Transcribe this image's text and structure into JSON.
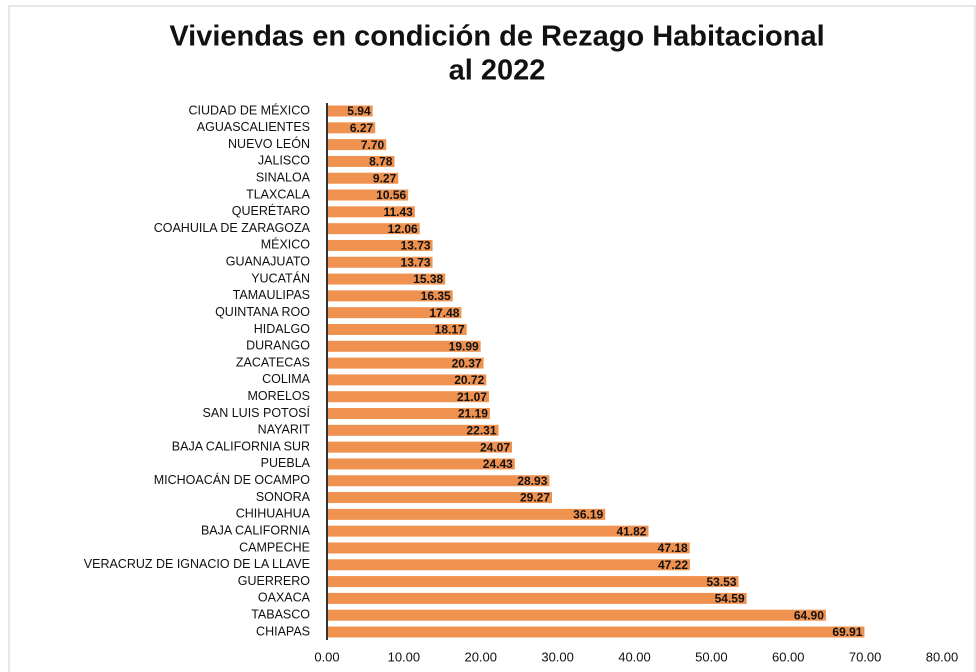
{
  "chart_data": {
    "type": "hbar",
    "title": [
      "Viviendas en condición de Rezago Habitacional",
      "al 2022"
    ],
    "categories": [
      "CIUDAD DE MÉXICO",
      "AGUASCALIENTES",
      "NUEVO LEÓN",
      "JALISCO",
      "SINALOA",
      "TLAXCALA",
      "QUERÉTARO",
      "COAHUILA DE ZARAGOZA",
      "MÉXICO",
      "GUANAJUATO",
      "YUCATÁN",
      "TAMAULIPAS",
      "QUINTANA ROO",
      "HIDALGO",
      "DURANGO",
      "ZACATECAS",
      "COLIMA",
      "MORELOS",
      "SAN LUIS POTOSÍ",
      "NAYARIT",
      "BAJA CALIFORNIA SUR",
      "PUEBLA",
      "MICHOACÁN DE OCAMPO",
      "SONORA",
      "CHIHUAHUA",
      "BAJA CALIFORNIA",
      "CAMPECHE",
      "VERACRUZ DE IGNACIO DE LA LLAVE",
      "GUERRERO",
      "OAXACA",
      "TABASCO",
      "CHIAPAS"
    ],
    "values": [
      5.94,
      6.27,
      7.7,
      8.78,
      9.27,
      10.56,
      11.43,
      12.06,
      13.73,
      13.73,
      15.38,
      16.35,
      17.48,
      18.17,
      19.99,
      20.37,
      20.72,
      21.07,
      21.19,
      22.31,
      24.07,
      24.43,
      28.93,
      29.27,
      36.19,
      41.82,
      47.18,
      47.22,
      53.53,
      54.59,
      64.9,
      69.91
    ],
    "value_labels": [
      "5.94",
      "6.27",
      "7.70",
      "8.78",
      "9.27",
      "10.56",
      "11.43",
      "12.06",
      "13.73",
      "13.73",
      "15.38",
      "16.35",
      "17.48",
      "18.17",
      "19.99",
      "20.37",
      "20.72",
      "21.07",
      "21.19",
      "22.31",
      "24.07",
      "24.43",
      "28.93",
      "29.27",
      "36.19",
      "41.82",
      "47.18",
      "47.22",
      "53.53",
      "54.59",
      "64.90",
      "69.91"
    ],
    "color": "#f0924f",
    "xlim": [
      0,
      80
    ],
    "xticks": [
      {
        "value": 0,
        "label": "0.00"
      },
      {
        "value": 10,
        "label": "10.00"
      },
      {
        "value": 20,
        "label": "20.00"
      },
      {
        "value": 30,
        "label": "30.00"
      },
      {
        "value": 40,
        "label": "40.00"
      },
      {
        "value": 50,
        "label": "50.00"
      },
      {
        "value": 60,
        "label": "60.00"
      },
      {
        "value": 70,
        "label": "70.00"
      },
      {
        "value": 80,
        "label": "80.00"
      }
    ]
  }
}
